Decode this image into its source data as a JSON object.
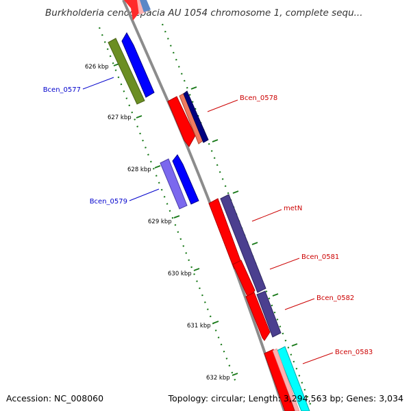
{
  "title": "Burkholderia cenocepacia AU 1054 chromosome 1, complete sequ...",
  "accession": "Accession: NC_008060",
  "topology": "Topology: circular; Length: 3,294,563 bp; Genes: 3,034",
  "tick_labels": [
    "626 kbp",
    "627 kbp",
    "628 kbp",
    "629 kbp",
    "630 kbp",
    "631 kbp",
    "632 kbp"
  ],
  "gene_labels": [
    {
      "text": "Bcen_0577",
      "color": "#0000cc"
    },
    {
      "text": "Bcen_0578",
      "color": "#cc0000"
    },
    {
      "text": "Bcen_0579",
      "color": "#0000cc"
    },
    {
      "text": "metN",
      "color": "#cc0000"
    },
    {
      "text": "Bcen_0581",
      "color": "#cc0000"
    },
    {
      "text": "Bcen_0582",
      "color": "#cc0000"
    },
    {
      "text": "Bcen_0583",
      "color": "#cc0000"
    }
  ],
  "colors": {
    "backbone": "#8c8c8c",
    "tick": "#1a7a1a",
    "forward_cds": "#ff0000",
    "reverse_cds": "#0000ff",
    "accent_green": "#6b8e23",
    "accent_purple": "#4b3f8f",
    "accent_cyan": "#00ffff"
  }
}
